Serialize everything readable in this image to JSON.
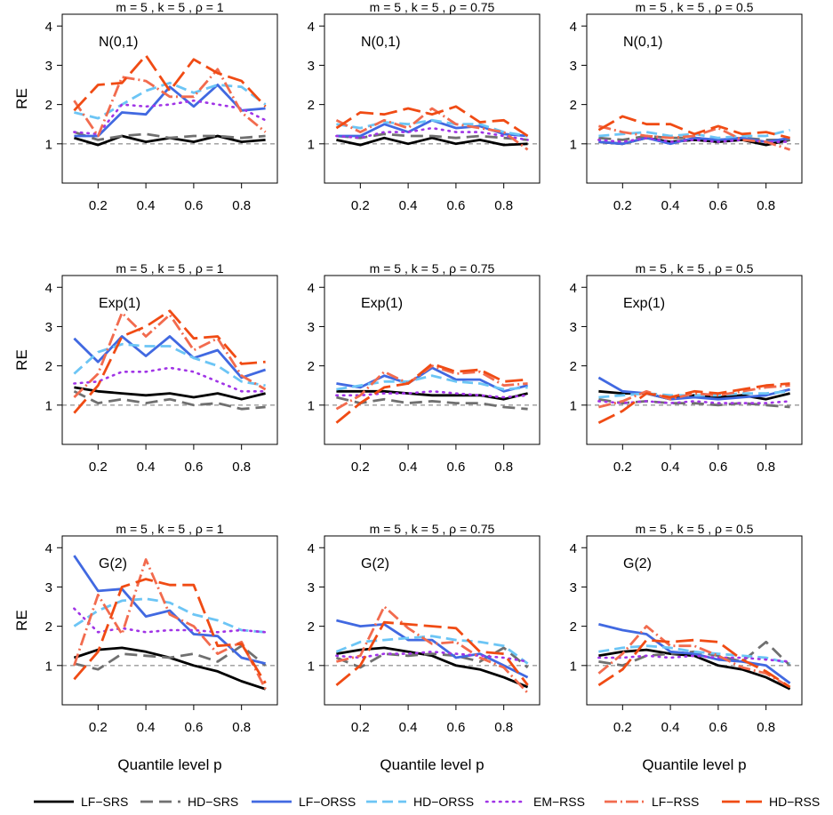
{
  "chart_data": {
    "type": "line",
    "x": [
      0.1,
      0.2,
      0.3,
      0.4,
      0.5,
      0.6,
      0.7,
      0.8,
      0.9
    ],
    "xticks": [
      "0.2",
      "0.4",
      "0.6",
      "0.8"
    ],
    "yticks": [
      "1",
      "2",
      "3",
      "4"
    ],
    "ylim": [
      0,
      4.3
    ],
    "xlim": [
      0.05,
      0.95
    ],
    "ylabel": "RE",
    "xlabel": "Quantile level p",
    "reference_line": 1,
    "grid": false,
    "legend_position": "bottom",
    "series_styles": [
      {
        "name": "LF−SRS",
        "color": "#000000"
      },
      {
        "name": "HD−SRS",
        "color": "#707070"
      },
      {
        "name": "LF−ORSS",
        "color": "#4169e1"
      },
      {
        "name": "HD−ORSS",
        "color": "#6cc5f5"
      },
      {
        "name": "EM−RSS",
        "color": "#a034e6"
      },
      {
        "name": "LF−RSS",
        "color": "#f26b4e"
      },
      {
        "name": "HD−RSS",
        "color": "#f04b14"
      }
    ],
    "panels": [
      {
        "title": "m = 5 , k = 5 , ρ = 1",
        "label": "N(0,1)",
        "series": [
          {
            "name": "LF−SRS",
            "values": [
              1.15,
              0.97,
              1.2,
              1.05,
              1.15,
              1.05,
              1.2,
              1.05,
              1.1
            ]
          },
          {
            "name": "HD−SRS",
            "values": [
              1.3,
              1.1,
              1.2,
              1.25,
              1.15,
              1.2,
              1.2,
              1.15,
              1.2
            ]
          },
          {
            "name": "LF−ORSS",
            "values": [
              1.2,
              1.2,
              1.8,
              1.75,
              2.45,
              1.95,
              2.5,
              1.85,
              1.9
            ]
          },
          {
            "name": "HD−ORSS",
            "values": [
              1.8,
              1.65,
              2.0,
              2.35,
              2.55,
              2.3,
              2.5,
              2.45,
              2.0
            ]
          },
          {
            "name": "EM−RSS",
            "values": [
              1.3,
              1.25,
              2.0,
              1.95,
              2.0,
              2.1,
              2.0,
              1.9,
              1.6
            ]
          },
          {
            "name": "LF−RSS",
            "values": [
              2.1,
              1.2,
              2.7,
              2.6,
              2.2,
              2.2,
              2.9,
              1.8,
              1.3
            ]
          },
          {
            "name": "HD−RSS",
            "values": [
              1.85,
              2.5,
              2.55,
              3.25,
              2.35,
              3.15,
              2.8,
              2.6,
              1.95
            ]
          }
        ]
      },
      {
        "title": "m = 5 , k = 5 , ρ = 0.75",
        "label": "N(0,1)",
        "series": [
          {
            "name": "LF−SRS",
            "values": [
              1.1,
              0.97,
              1.15,
              1.0,
              1.15,
              1.0,
              1.1,
              0.97,
              1.0
            ]
          },
          {
            "name": "HD−SRS",
            "values": [
              1.2,
              1.15,
              1.25,
              1.2,
              1.2,
              1.15,
              1.2,
              1.15,
              1.1
            ]
          },
          {
            "name": "LF−ORSS",
            "values": [
              1.2,
              1.2,
              1.5,
              1.3,
              1.6,
              1.4,
              1.45,
              1.25,
              1.2
            ]
          },
          {
            "name": "HD−ORSS",
            "values": [
              1.5,
              1.4,
              1.55,
              1.5,
              1.6,
              1.5,
              1.5,
              1.3,
              1.2
            ]
          },
          {
            "name": "EM−RSS",
            "values": [
              1.2,
              1.15,
              1.3,
              1.3,
              1.4,
              1.3,
              1.3,
              1.2,
              1.1
            ]
          },
          {
            "name": "LF−RSS",
            "values": [
              1.6,
              1.3,
              1.6,
              1.4,
              1.9,
              1.5,
              1.4,
              1.3,
              0.85
            ]
          },
          {
            "name": "HD−RSS",
            "values": [
              1.4,
              1.8,
              1.75,
              1.9,
              1.75,
              1.95,
              1.55,
              1.6,
              1.2
            ]
          }
        ]
      },
      {
        "title": "m = 5 , k = 5 , ρ = 0.5",
        "label": "N(0,1)",
        "series": [
          {
            "name": "LF−SRS",
            "values": [
              1.05,
              1.0,
              1.15,
              1.05,
              1.1,
              1.05,
              1.1,
              0.97,
              1.1
            ]
          },
          {
            "name": "HD−SRS",
            "values": [
              1.15,
              1.1,
              1.2,
              1.15,
              1.15,
              1.1,
              1.15,
              1.1,
              1.1
            ]
          },
          {
            "name": "LF−ORSS",
            "values": [
              1.05,
              1.0,
              1.15,
              1.0,
              1.15,
              1.1,
              1.15,
              1.05,
              1.15
            ]
          },
          {
            "name": "HD−ORSS",
            "values": [
              1.2,
              1.25,
              1.3,
              1.2,
              1.25,
              1.15,
              1.2,
              1.2,
              1.35
            ]
          },
          {
            "name": "EM−RSS",
            "values": [
              1.1,
              1.05,
              1.15,
              1.05,
              1.1,
              1.05,
              1.1,
              1.05,
              1.05
            ]
          },
          {
            "name": "LF−RSS",
            "values": [
              1.45,
              1.3,
              1.2,
              1.15,
              1.2,
              1.4,
              1.1,
              1.05,
              0.85
            ]
          },
          {
            "name": "HD−RSS",
            "values": [
              1.35,
              1.7,
              1.5,
              1.5,
              1.25,
              1.45,
              1.25,
              1.3,
              1.15
            ]
          }
        ]
      },
      {
        "title": "m = 5 , k = 5 , ρ = 1",
        "label": "Exp(1)",
        "series": [
          {
            "name": "LF−SRS",
            "values": [
              1.45,
              1.35,
              1.3,
              1.25,
              1.3,
              1.2,
              1.3,
              1.15,
              1.3
            ]
          },
          {
            "name": "HD−SRS",
            "values": [
              1.35,
              1.05,
              1.15,
              1.05,
              1.15,
              1.0,
              1.05,
              0.9,
              0.95
            ]
          },
          {
            "name": "LF−ORSS",
            "values": [
              2.7,
              2.1,
              2.75,
              2.25,
              2.75,
              2.2,
              2.4,
              1.7,
              1.9
            ]
          },
          {
            "name": "HD−ORSS",
            "values": [
              1.8,
              2.35,
              2.55,
              2.5,
              2.5,
              2.2,
              2.0,
              1.6,
              1.5
            ]
          },
          {
            "name": "EM−RSS",
            "values": [
              1.55,
              1.6,
              1.85,
              1.85,
              1.95,
              1.85,
              1.6,
              1.35,
              1.35
            ]
          },
          {
            "name": "LF−RSS",
            "values": [
              1.2,
              1.8,
              3.35,
              2.75,
              3.3,
              2.4,
              2.7,
              1.75,
              1.4
            ]
          },
          {
            "name": "HD−RSS",
            "values": [
              0.8,
              1.5,
              2.75,
              3.0,
              3.4,
              2.7,
              2.75,
              2.05,
              2.1
            ]
          }
        ]
      },
      {
        "title": "m = 5 , k = 5 , ρ = 0.75",
        "label": "Exp(1)",
        "series": [
          {
            "name": "LF−SRS",
            "values": [
              1.35,
              1.35,
              1.35,
              1.3,
              1.25,
              1.25,
              1.25,
              1.15,
              1.3
            ]
          },
          {
            "name": "HD−SRS",
            "values": [
              1.2,
              1.05,
              1.15,
              1.05,
              1.1,
              1.05,
              1.05,
              0.95,
              0.9
            ]
          },
          {
            "name": "LF−ORSS",
            "values": [
              1.55,
              1.45,
              1.75,
              1.55,
              1.95,
              1.65,
              1.65,
              1.35,
              1.5
            ]
          },
          {
            "name": "HD−ORSS",
            "values": [
              1.4,
              1.5,
              1.6,
              1.6,
              1.75,
              1.6,
              1.55,
              1.4,
              1.45
            ]
          },
          {
            "name": "EM−RSS",
            "values": [
              1.25,
              1.25,
              1.3,
              1.3,
              1.35,
              1.3,
              1.25,
              1.2,
              1.25
            ]
          },
          {
            "name": "LF−RSS",
            "values": [
              0.9,
              1.25,
              1.85,
              1.55,
              2.0,
              1.8,
              1.85,
              1.5,
              1.55
            ]
          },
          {
            "name": "HD−RSS",
            "values": [
              0.55,
              1.05,
              1.45,
              1.55,
              2.05,
              1.85,
              1.9,
              1.6,
              1.65
            ]
          }
        ]
      },
      {
        "title": "m = 5 , k = 5 , ρ = 0.5",
        "label": "Exp(1)",
        "series": [
          {
            "name": "LF−SRS",
            "values": [
              1.35,
              1.3,
              1.3,
              1.15,
              1.25,
              1.2,
              1.25,
              1.15,
              1.3
            ]
          },
          {
            "name": "HD−SRS",
            "values": [
              1.15,
              1.05,
              1.1,
              1.05,
              1.05,
              1.0,
              1.05,
              1.0,
              0.95
            ]
          },
          {
            "name": "LF−ORSS",
            "values": [
              1.7,
              1.35,
              1.3,
              1.15,
              1.2,
              1.15,
              1.2,
              1.25,
              1.4
            ]
          },
          {
            "name": "HD−ORSS",
            "values": [
              1.2,
              1.25,
              1.3,
              1.25,
              1.25,
              1.25,
              1.3,
              1.3,
              1.35
            ]
          },
          {
            "name": "EM−RSS",
            "values": [
              1.1,
              1.05,
              1.1,
              1.05,
              1.1,
              1.05,
              1.05,
              1.05,
              1.1
            ]
          },
          {
            "name": "LF−RSS",
            "values": [
              0.95,
              1.1,
              1.35,
              1.15,
              1.3,
              1.25,
              1.35,
              1.45,
              1.5
            ]
          },
          {
            "name": "HD−RSS",
            "values": [
              0.55,
              0.85,
              1.3,
              1.2,
              1.35,
              1.3,
              1.4,
              1.5,
              1.55
            ]
          }
        ]
      },
      {
        "title": "m = 5 , k = 5 , ρ = 1",
        "label": "G(2)",
        "series": [
          {
            "name": "LF−SRS",
            "values": [
              1.2,
              1.4,
              1.45,
              1.35,
              1.2,
              1.0,
              0.85,
              0.6,
              0.4
            ]
          },
          {
            "name": "HD−SRS",
            "values": [
              1.05,
              0.9,
              1.3,
              1.25,
              1.2,
              1.3,
              1.1,
              1.5,
              1.0
            ]
          },
          {
            "name": "LF−ORSS",
            "values": [
              3.8,
              2.9,
              2.95,
              2.25,
              2.4,
              1.8,
              1.75,
              1.2,
              1.05
            ]
          },
          {
            "name": "HD−ORSS",
            "values": [
              2.0,
              2.4,
              2.65,
              2.7,
              2.6,
              2.3,
              2.15,
              1.9,
              1.85
            ]
          },
          {
            "name": "EM−RSS",
            "values": [
              2.45,
              1.85,
              1.95,
              1.85,
              1.9,
              1.9,
              1.85,
              1.9,
              1.85
            ]
          },
          {
            "name": "LF−RSS",
            "values": [
              1.0,
              2.8,
              1.8,
              3.7,
              2.3,
              2.0,
              1.3,
              1.6,
              0.4
            ]
          },
          {
            "name": "HD−RSS",
            "values": [
              0.65,
              1.35,
              3.0,
              3.2,
              3.05,
              3.05,
              1.5,
              1.55,
              0.55
            ]
          }
        ]
      },
      {
        "title": "m = 5 , k = 5 , ρ = 0.75",
        "label": "G(2)",
        "series": [
          {
            "name": "LF−SRS",
            "values": [
              1.3,
              1.4,
              1.45,
              1.35,
              1.25,
              1.0,
              0.9,
              0.7,
              0.45
            ]
          },
          {
            "name": "HD−SRS",
            "values": [
              1.2,
              0.95,
              1.3,
              1.25,
              1.3,
              1.25,
              1.1,
              1.45,
              0.95
            ]
          },
          {
            "name": "LF−ORSS",
            "values": [
              2.15,
              2.0,
              2.05,
              1.65,
              1.65,
              1.2,
              1.3,
              1.0,
              0.7
            ]
          },
          {
            "name": "HD−ORSS",
            "values": [
              1.35,
              1.6,
              1.65,
              1.7,
              1.75,
              1.65,
              1.6,
              1.5,
              1.05
            ]
          },
          {
            "name": "EM−RSS",
            "values": [
              1.25,
              1.2,
              1.3,
              1.3,
              1.35,
              1.3,
              1.25,
              1.2,
              1.1
            ]
          },
          {
            "name": "LF−RSS",
            "values": [
              1.1,
              1.25,
              2.5,
              1.95,
              1.55,
              1.6,
              1.2,
              0.95,
              0.3
            ]
          },
          {
            "name": "HD−RSS",
            "values": [
              0.5,
              1.0,
              2.1,
              2.05,
              2.0,
              1.95,
              1.35,
              1.3,
              0.5
            ]
          }
        ]
      },
      {
        "title": "m = 5 , k = 5 , ρ = 0.5",
        "label": "G(2)",
        "series": [
          {
            "name": "LF−SRS",
            "values": [
              1.25,
              1.35,
              1.4,
              1.3,
              1.25,
              1.0,
              0.9,
              0.7,
              0.4
            ]
          },
          {
            "name": "HD−SRS",
            "values": [
              1.1,
              1.0,
              1.25,
              1.3,
              1.35,
              1.25,
              1.1,
              1.6,
              1.0
            ]
          },
          {
            "name": "LF−ORSS",
            "values": [
              2.05,
              1.9,
              1.8,
              1.35,
              1.3,
              1.15,
              1.1,
              1.0,
              0.55
            ]
          },
          {
            "name": "HD−ORSS",
            "values": [
              1.35,
              1.45,
              1.5,
              1.45,
              1.35,
              1.3,
              1.25,
              1.2,
              1.05
            ]
          },
          {
            "name": "EM−RSS",
            "values": [
              1.2,
              1.2,
              1.25,
              1.2,
              1.25,
              1.2,
              1.2,
              1.15,
              1.1
            ]
          },
          {
            "name": "LF−RSS",
            "values": [
              0.8,
              1.3,
              2.0,
              1.5,
              1.5,
              1.25,
              0.95,
              0.8,
              0.45
            ]
          },
          {
            "name": "HD−RSS",
            "values": [
              0.5,
              0.9,
              1.65,
              1.6,
              1.65,
              1.6,
              1.15,
              0.85,
              0.45
            ]
          }
        ]
      }
    ]
  }
}
